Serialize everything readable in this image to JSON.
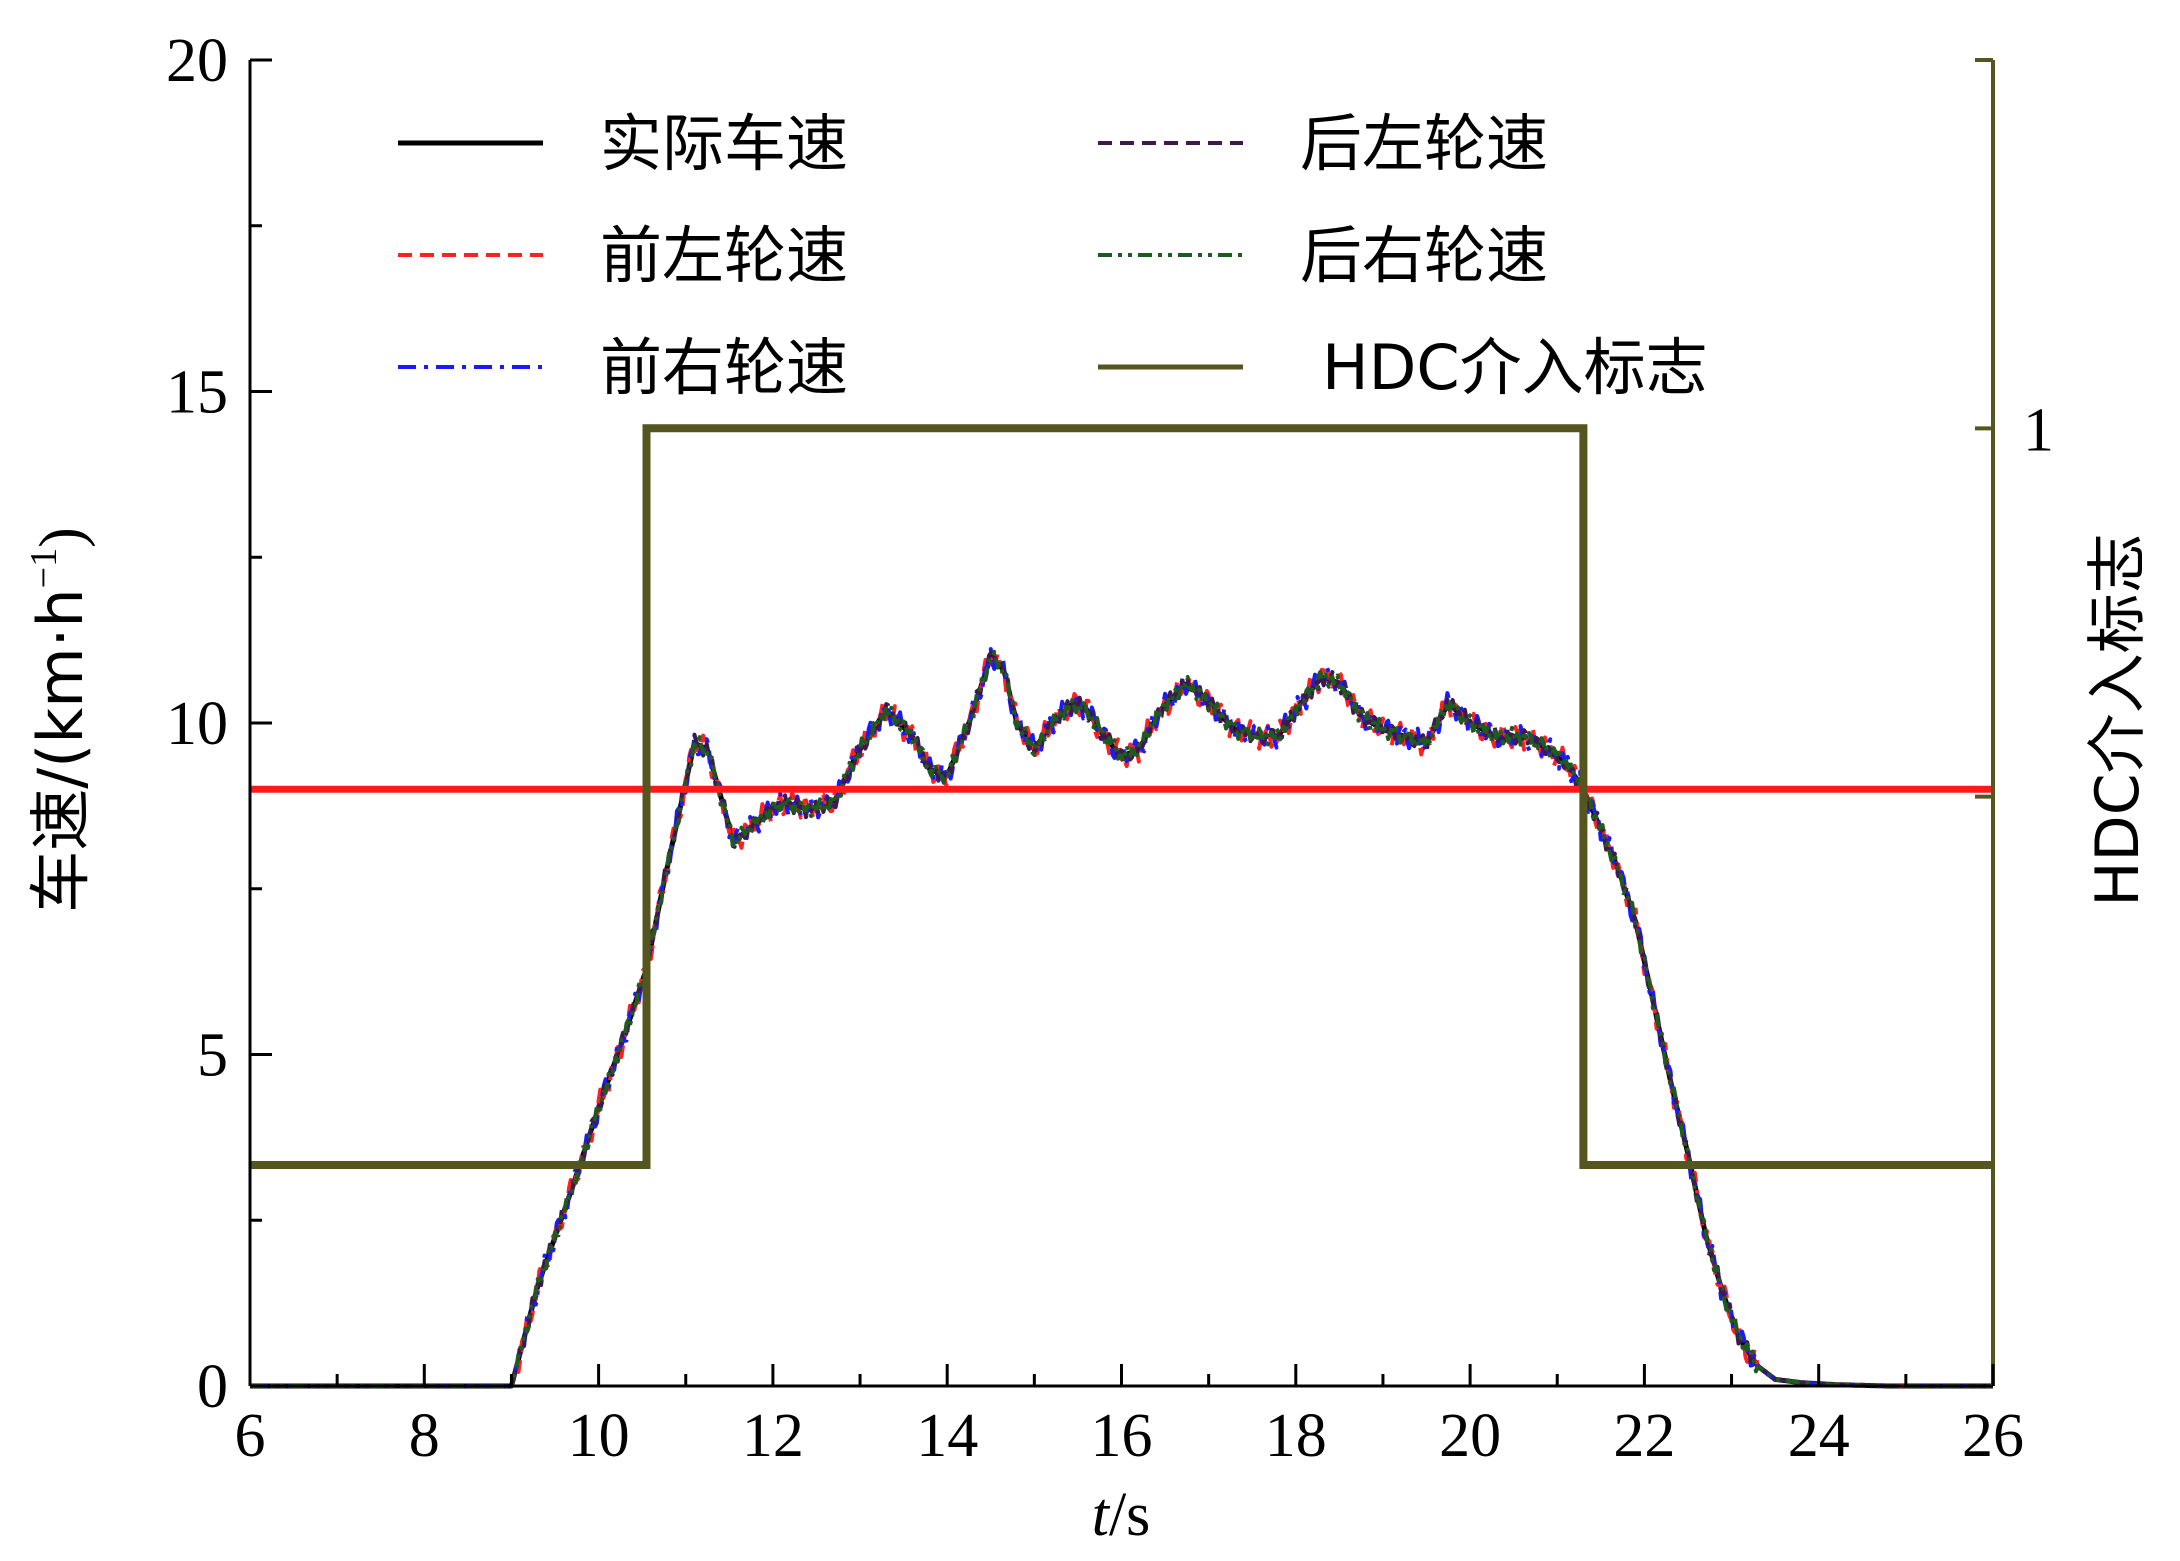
{
  "chart_data": {
    "type": "line",
    "xlabel_italic": "t",
    "xlabel_rest": "/s",
    "ylabel_main": "车速/(km·h",
    "ylabel_sup": "−1",
    "ylabel_close": ")",
    "y2label": "HDC介入标志",
    "xlim": [
      6,
      26
    ],
    "ylim": [
      0,
      20
    ],
    "y2lim": [
      -0.3,
      1.5
    ],
    "xticks": [
      6,
      8,
      10,
      12,
      14,
      16,
      18,
      20,
      22,
      24,
      26
    ],
    "xtick_labels": [
      "6",
      "8",
      "10",
      "12",
      "14",
      "16",
      "18",
      "20",
      "22",
      "24",
      "26"
    ],
    "yticks": [
      0,
      5,
      10,
      15,
      20
    ],
    "ytick_labels": [
      "0",
      "5",
      "10",
      "15",
      "20"
    ],
    "y2ticks": [
      1
    ],
    "y2tick_labels": [
      "1"
    ],
    "threshold": {
      "y": 9,
      "color": "#ff1a1a"
    },
    "grid": false,
    "legend_position": "top",
    "speed_profile": {
      "x": [
        6,
        9.0,
        9.3,
        9.7,
        10.0,
        10.3,
        10.55,
        10.75,
        10.95,
        11.1,
        11.25,
        11.4,
        11.55,
        11.8,
        12.1,
        12.4,
        12.7,
        12.95,
        13.3,
        13.6,
        13.8,
        14.0,
        14.25,
        14.5,
        14.65,
        14.8,
        15.0,
        15.2,
        15.45,
        15.6,
        15.8,
        16.0,
        16.2,
        16.45,
        16.75,
        17.0,
        17.3,
        17.6,
        17.8,
        18.0,
        18.3,
        18.5,
        18.75,
        19.0,
        19.25,
        19.5,
        19.75,
        20.0,
        20.3,
        20.6,
        20.9,
        21.1,
        21.3,
        21.5,
        21.7,
        21.9,
        22.1,
        22.3,
        22.5,
        22.7,
        22.9,
        23.1,
        23.3,
        23.5,
        23.8,
        24.2,
        24.8,
        25.5,
        26
      ],
      "y": [
        0,
        0,
        1.5,
        3.0,
        4.2,
        5.3,
        6.3,
        7.6,
        8.8,
        9.7,
        9.6,
        8.9,
        8.2,
        8.5,
        8.8,
        8.7,
        8.8,
        9.5,
        10.2,
        9.8,
        9.3,
        9.2,
        10.0,
        11.0,
        10.8,
        10.0,
        9.6,
        10.0,
        10.3,
        10.2,
        9.8,
        9.5,
        9.6,
        10.2,
        10.6,
        10.3,
        9.9,
        9.8,
        9.8,
        10.2,
        10.7,
        10.6,
        10.1,
        9.9,
        9.8,
        9.7,
        10.3,
        10.0,
        9.8,
        9.8,
        9.6,
        9.4,
        9.0,
        8.4,
        7.8,
        7.0,
        5.8,
        4.6,
        3.5,
        2.3,
        1.4,
        0.7,
        0.3,
        0.1,
        0.05,
        0.02,
        0,
        0,
        0
      ]
    },
    "series": [
      {
        "name": "实际车速",
        "color": "#000000",
        "dash": "solid",
        "offset": 0.0
      },
      {
        "name": "前左轮速",
        "color": "#ff2020",
        "dash": "dash",
        "offset": 0.12
      },
      {
        "name": "前右轮速",
        "color": "#1a1aff",
        "dash": "dashdot",
        "offset": -0.1
      },
      {
        "name": "后左轮速",
        "color": "#3d1a4d",
        "dash": "dash",
        "offset": 0.05
      },
      {
        "name": "后右轮速",
        "color": "#1f5a1f",
        "dash": "dashdotdot",
        "offset": -0.05
      }
    ],
    "hdc_flag": {
      "name": "HDC介入标志",
      "color": "#55551f",
      "x": [
        6,
        10.55,
        10.55,
        21.3,
        21.3,
        26
      ],
      "y": [
        0,
        0,
        1,
        1,
        0,
        0
      ]
    }
  }
}
